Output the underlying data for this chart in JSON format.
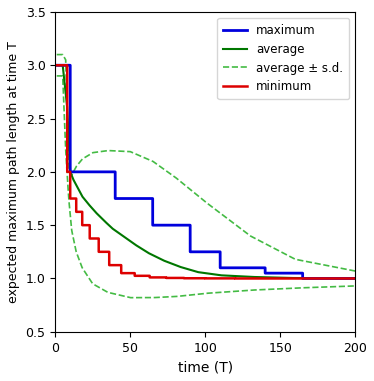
{
  "title": "",
  "xlabel": "time (T)",
  "ylabel": "expected maximum path length at time T",
  "xlim": [
    0,
    200
  ],
  "ylim": [
    0.5,
    3.5
  ],
  "xticks": [
    0,
    50,
    100,
    150,
    200
  ],
  "yticks": [
    0.5,
    1.0,
    1.5,
    2.0,
    2.5,
    3.0,
    3.5
  ],
  "legend_entries": [
    "maximum",
    "average",
    "average ± s.d.",
    "minimum"
  ],
  "line_colors": {
    "maximum": "#0000dd",
    "average": "#007700",
    "sd": "#44bb44",
    "minimum": "#dd0000"
  },
  "line_widths": {
    "maximum": 2.0,
    "average": 1.5,
    "sd": 1.2,
    "minimum": 1.8
  },
  "figsize": [
    3.74,
    3.81
  ],
  "dpi": 100
}
